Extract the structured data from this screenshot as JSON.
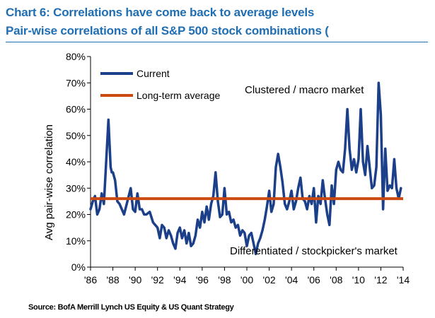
{
  "header": {
    "title": "Chart 6: Correlations have come back to average levels",
    "subtitle": "Pair-wise correlations of all S&P 500 stock combinations ("
  },
  "source": "Source: BofA Merrill Lynch US Equity & US Quant Strategy",
  "colors": {
    "title": "#1f6eb3",
    "current": "#1c3f8a",
    "average": "#cc4a0f",
    "rule": "#1f6eb3"
  },
  "chart_data": {
    "type": "line",
    "title": "Chart 6: Correlations have come back to average levels",
    "subtitle": "Pair-wise correlations of all S&P 500 stock combinations (",
    "xlabel": "",
    "ylabel": "Avg pair-wise correlation",
    "xlim": [
      1986,
      2014
    ],
    "ylim": [
      0,
      0.8
    ],
    "x_tick_labels": [
      "'86",
      "'88",
      "'90",
      "'92",
      "'94",
      "'96",
      "'98",
      "'00",
      "'02",
      "'04",
      "'06",
      "'08",
      "'10",
      "'12",
      "'14"
    ],
    "y_tick_labels": [
      "0%",
      "10%",
      "20%",
      "30%",
      "40%",
      "50%",
      "60%",
      "70%",
      "80%"
    ],
    "grid": false,
    "legend_position": "top-left",
    "annotations": [
      "Clustered / macro market",
      "Differentiated / stockpicker's market"
    ],
    "series": [
      {
        "name": "Current",
        "x": [
          1986.0,
          1986.2,
          1986.4,
          1986.6,
          1986.8,
          1987.0,
          1987.2,
          1987.4,
          1987.6,
          1987.8,
          1987.9,
          1988.0,
          1988.2,
          1988.4,
          1988.6,
          1988.8,
          1989.0,
          1989.3,
          1989.6,
          1989.8,
          1990.0,
          1990.2,
          1990.4,
          1990.6,
          1990.8,
          1991.0,
          1991.3,
          1991.6,
          1992.0,
          1992.2,
          1992.4,
          1992.6,
          1992.8,
          1993.0,
          1993.2,
          1993.4,
          1993.6,
          1993.8,
          1994.0,
          1994.2,
          1994.4,
          1994.6,
          1994.8,
          1995.0,
          1995.2,
          1995.4,
          1995.6,
          1995.8,
          1996.0,
          1996.2,
          1996.4,
          1996.6,
          1996.8,
          1997.0,
          1997.2,
          1997.4,
          1997.6,
          1997.8,
          1998.0,
          1998.2,
          1998.4,
          1998.6,
          1998.8,
          1999.0,
          1999.2,
          1999.4,
          1999.6,
          1999.8,
          2000.0,
          2000.2,
          2000.4,
          2000.6,
          2000.8,
          2001.0,
          2001.2,
          2001.4,
          2001.6,
          2001.8,
          2002.0,
          2002.2,
          2002.4,
          2002.6,
          2002.8,
          2003.0,
          2003.2,
          2003.4,
          2003.6,
          2003.8,
          2004.0,
          2004.2,
          2004.4,
          2004.6,
          2004.8,
          2005.0,
          2005.2,
          2005.4,
          2005.6,
          2005.8,
          2006.0,
          2006.2,
          2006.4,
          2006.6,
          2006.8,
          2007.0,
          2007.2,
          2007.4,
          2007.6,
          2007.8,
          2008.0,
          2008.2,
          2008.4,
          2008.6,
          2008.8,
          2009.0,
          2009.2,
          2009.4,
          2009.6,
          2009.8,
          2010.0,
          2010.2,
          2010.4,
          2010.6,
          2010.8,
          2011.0,
          2011.2,
          2011.4,
          2011.6,
          2011.8,
          2012.0,
          2012.2,
          2012.4,
          2012.6,
          2012.8,
          2013.0,
          2013.2,
          2013.4,
          2013.6,
          2013.8
        ],
        "values": [
          0.22,
          0.25,
          0.27,
          0.2,
          0.22,
          0.28,
          0.24,
          0.4,
          0.56,
          0.38,
          0.36,
          0.36,
          0.33,
          0.25,
          0.24,
          0.22,
          0.2,
          0.25,
          0.3,
          0.22,
          0.21,
          0.28,
          0.22,
          0.22,
          0.2,
          0.2,
          0.21,
          0.17,
          0.15,
          0.11,
          0.16,
          0.15,
          0.11,
          0.14,
          0.12,
          0.09,
          0.07,
          0.13,
          0.15,
          0.11,
          0.14,
          0.09,
          0.13,
          0.08,
          0.09,
          0.12,
          0.18,
          0.15,
          0.21,
          0.17,
          0.23,
          0.18,
          0.24,
          0.27,
          0.36,
          0.25,
          0.19,
          0.2,
          0.3,
          0.2,
          0.21,
          0.17,
          0.18,
          0.15,
          0.16,
          0.12,
          0.14,
          0.13,
          0.08,
          0.12,
          0.13,
          0.09,
          0.05,
          0.09,
          0.11,
          0.14,
          0.18,
          0.23,
          0.29,
          0.21,
          0.24,
          0.38,
          0.43,
          0.38,
          0.32,
          0.24,
          0.22,
          0.25,
          0.29,
          0.22,
          0.25,
          0.3,
          0.34,
          0.26,
          0.25,
          0.22,
          0.27,
          0.24,
          0.3,
          0.17,
          0.27,
          0.24,
          0.33,
          0.26,
          0.2,
          0.16,
          0.31,
          0.24,
          0.37,
          0.4,
          0.37,
          0.36,
          0.45,
          0.6,
          0.45,
          0.37,
          0.41,
          0.36,
          0.41,
          0.6,
          0.4,
          0.35,
          0.46,
          0.38,
          0.3,
          0.31,
          0.38,
          0.7,
          0.58,
          0.22,
          0.45,
          0.29,
          0.31,
          0.3,
          0.41,
          0.3,
          0.26,
          0.3
        ]
      },
      {
        "name": "Long-term average",
        "x": [
          1986,
          2014
        ],
        "values": [
          0.26,
          0.26
        ]
      }
    ]
  }
}
